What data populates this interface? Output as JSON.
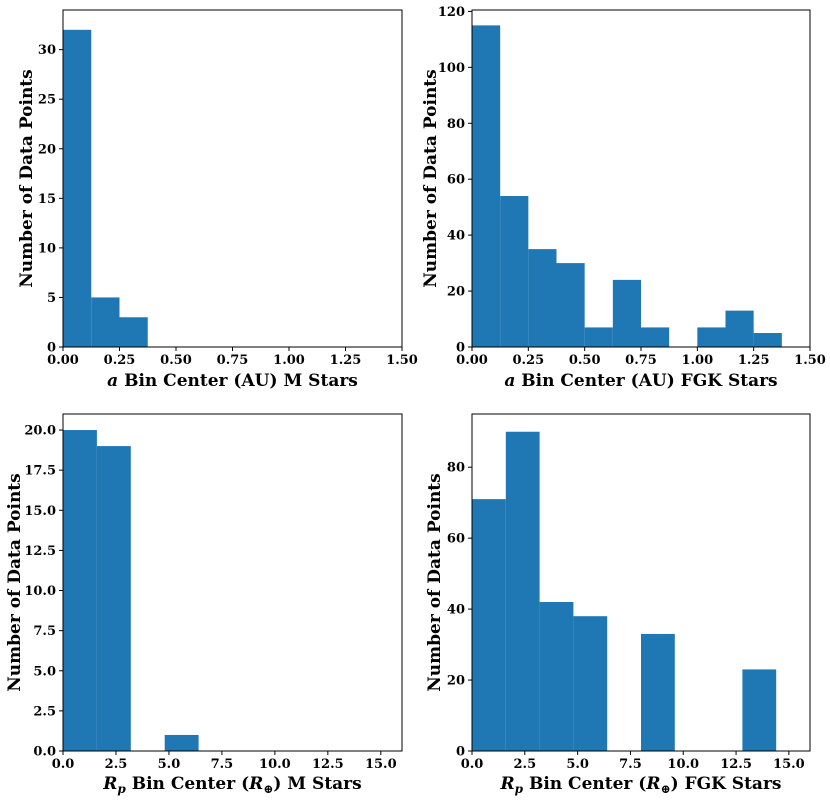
{
  "chart_data": [
    {
      "type": "bar",
      "color": "#1f77b4",
      "xlabel": {
        "prefix": "a",
        "text": " Bin Center (AU) M Stars"
      },
      "ylabel": "Number of Data Points",
      "xlim": [
        0,
        1.5
      ],
      "ylim": [
        0,
        34
      ],
      "xticks": [
        0,
        0.25,
        0.5,
        0.75,
        1.0,
        1.25,
        1.5
      ],
      "xtick_labels": [
        "0.00",
        "0.25",
        "0.50",
        "0.75",
        "1.00",
        "1.25",
        "1.50"
      ],
      "yticks": [
        0,
        5,
        10,
        15,
        20,
        25,
        30
      ],
      "ytick_labels": [
        "0",
        "5",
        "10",
        "15",
        "20",
        "25",
        "30"
      ],
      "bins": [
        {
          "x0": 0.0,
          "x1": 0.125,
          "value": 32
        },
        {
          "x0": 0.125,
          "x1": 0.25,
          "value": 5
        },
        {
          "x0": 0.25,
          "x1": 0.375,
          "value": 3
        }
      ]
    },
    {
      "type": "bar",
      "color": "#1f77b4",
      "xlabel": {
        "prefix": "a",
        "text": " Bin Center (AU) FGK Stars"
      },
      "ylabel": "Number of Data Points",
      "xlim": [
        0,
        1.5
      ],
      "ylim": [
        0,
        120.5
      ],
      "xticks": [
        0,
        0.25,
        0.5,
        0.75,
        1.0,
        1.25,
        1.5
      ],
      "xtick_labels": [
        "0.00",
        "0.25",
        "0.50",
        "0.75",
        "1.00",
        "1.25",
        "1.50"
      ],
      "yticks": [
        0,
        20,
        40,
        60,
        80,
        100,
        120
      ],
      "ytick_labels": [
        "0",
        "20",
        "40",
        "60",
        "80",
        "100",
        "120"
      ],
      "bins": [
        {
          "x0": 0.0,
          "x1": 0.125,
          "value": 115
        },
        {
          "x0": 0.125,
          "x1": 0.25,
          "value": 54
        },
        {
          "x0": 0.25,
          "x1": 0.375,
          "value": 35
        },
        {
          "x0": 0.375,
          "x1": 0.5,
          "value": 30
        },
        {
          "x0": 0.5,
          "x1": 0.625,
          "value": 7
        },
        {
          "x0": 0.625,
          "x1": 0.75,
          "value": 24
        },
        {
          "x0": 0.75,
          "x1": 0.875,
          "value": 7
        },
        {
          "x0": 1.0,
          "x1": 1.125,
          "value": 7
        },
        {
          "x0": 1.125,
          "x1": 1.25,
          "value": 13
        },
        {
          "x0": 1.25,
          "x1": 1.375,
          "value": 5
        }
      ]
    },
    {
      "type": "bar",
      "color": "#1f77b4",
      "xlabel": {
        "prefix": "R",
        "sub": "p",
        "text": " Bin Center (",
        "unit": "R",
        "unit_sub": "⊕",
        "suffix": ") M Stars"
      },
      "ylabel": "Number of Data Points",
      "xlim": [
        0,
        16
      ],
      "ylim": [
        0,
        21
      ],
      "xticks": [
        0,
        2.5,
        5,
        7.5,
        10,
        12.5,
        15
      ],
      "xtick_labels": [
        "0.0",
        "2.5",
        "5.0",
        "7.5",
        "10.0",
        "12.5",
        "15.0"
      ],
      "yticks": [
        0,
        2.5,
        5,
        7.5,
        10,
        12.5,
        15,
        17.5,
        20
      ],
      "ytick_labels": [
        "0.0",
        "2.5",
        "5.0",
        "7.5",
        "10.0",
        "12.5",
        "15.0",
        "17.5",
        "20.0"
      ],
      "bins": [
        {
          "x0": 0.0,
          "x1": 1.6,
          "value": 20
        },
        {
          "x0": 1.6,
          "x1": 3.2,
          "value": 19
        },
        {
          "x0": 4.8,
          "x1": 6.4,
          "value": 1
        }
      ]
    },
    {
      "type": "bar",
      "color": "#1f77b4",
      "xlabel": {
        "prefix": "R",
        "sub": "p",
        "text": " Bin Center (",
        "unit": "R",
        "unit_sub": "⊕",
        "suffix": ") FGK Stars"
      },
      "ylabel": "Number of Data Points",
      "xlim": [
        0,
        16
      ],
      "ylim": [
        0,
        95
      ],
      "xticks": [
        0,
        2.5,
        5,
        7.5,
        10,
        12.5,
        15
      ],
      "xtick_labels": [
        "0.0",
        "2.5",
        "5.0",
        "7.5",
        "10.0",
        "12.5",
        "15.0"
      ],
      "yticks": [
        0,
        20,
        40,
        60,
        80
      ],
      "ytick_labels": [
        "0",
        "20",
        "40",
        "60",
        "80"
      ],
      "bins": [
        {
          "x0": 0.0,
          "x1": 1.6,
          "value": 71
        },
        {
          "x0": 1.6,
          "x1": 3.2,
          "value": 90
        },
        {
          "x0": 3.2,
          "x1": 4.8,
          "value": 42
        },
        {
          "x0": 4.8,
          "x1": 6.4,
          "value": 38
        },
        {
          "x0": 8.0,
          "x1": 9.6,
          "value": 33
        },
        {
          "x0": 12.8,
          "x1": 14.4,
          "value": 23
        }
      ]
    }
  ]
}
